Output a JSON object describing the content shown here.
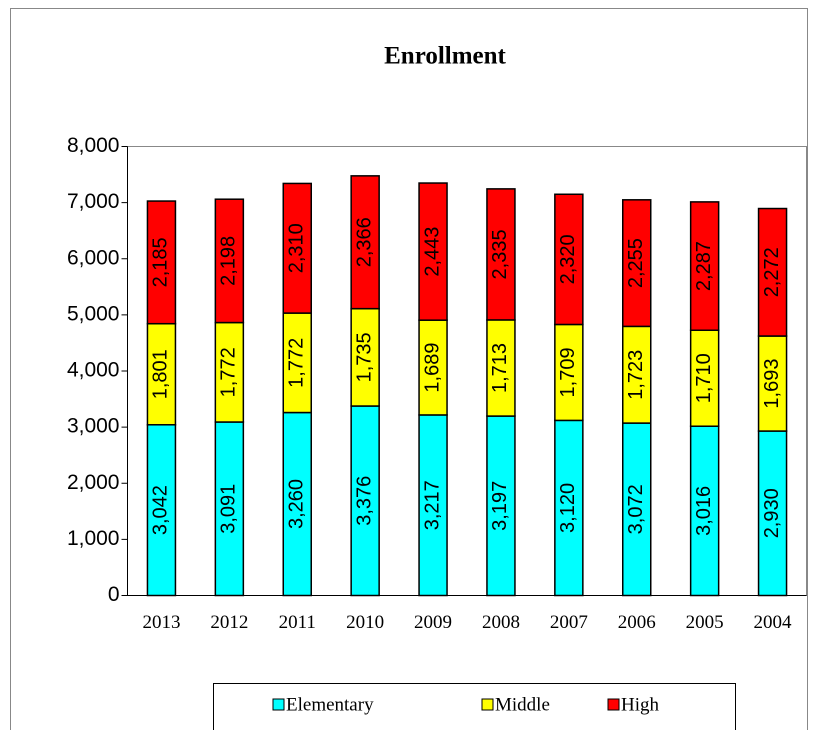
{
  "chart_data": {
    "type": "stacked_bar",
    "title": "Enrollment",
    "categories": [
      "2013",
      "2012",
      "2011",
      "2010",
      "2009",
      "2008",
      "2007",
      "2006",
      "2005",
      "2004"
    ],
    "series": [
      {
        "name": "Elementary",
        "color": "#00ffff",
        "values": [
          3042,
          3091,
          3260,
          3376,
          3217,
          3197,
          3120,
          3072,
          3016,
          2930
        ],
        "value_labels": [
          "3,042",
          "3,091",
          "3,260",
          "3,376",
          "3,217",
          "3,197",
          "3,120",
          "3,072",
          "3,016",
          "2,930"
        ]
      },
      {
        "name": "Middle",
        "color": "#ffff00",
        "values": [
          1801,
          1772,
          1772,
          1735,
          1689,
          1713,
          1709,
          1723,
          1710,
          1693
        ],
        "value_labels": [
          "1,801",
          "1,772",
          "1,772",
          "1,735",
          "1,689",
          "1,713",
          "1,709",
          "1,723",
          "1,710",
          "1,693"
        ]
      },
      {
        "name": "High",
        "color": "#ff0000",
        "values": [
          2185,
          2198,
          2310,
          2366,
          2443,
          2335,
          2320,
          2255,
          2287,
          2272
        ],
        "value_labels": [
          "2,185",
          "2,198",
          "2,310",
          "2,366",
          "2,443",
          "2,335",
          "2,320",
          "2,255",
          "2,287",
          "2,272"
        ]
      }
    ],
    "ylim": [
      0,
      8000
    ],
    "yticks": [
      0,
      {
        "value": 1000,
        "label": "1,000"
      },
      {
        "value": 2000,
        "label": "2,000"
      },
      {
        "value": 3000,
        "label": "3,000"
      },
      {
        "value": 4000,
        "label": "4,000"
      },
      {
        "value": 5000,
        "label": "5,000"
      },
      {
        "value": 6000,
        "label": "6,000"
      },
      {
        "value": 7000,
        "label": "7,000"
      },
      {
        "value": 8000,
        "label": "8,000"
      }
    ],
    "legend": "bottom"
  }
}
